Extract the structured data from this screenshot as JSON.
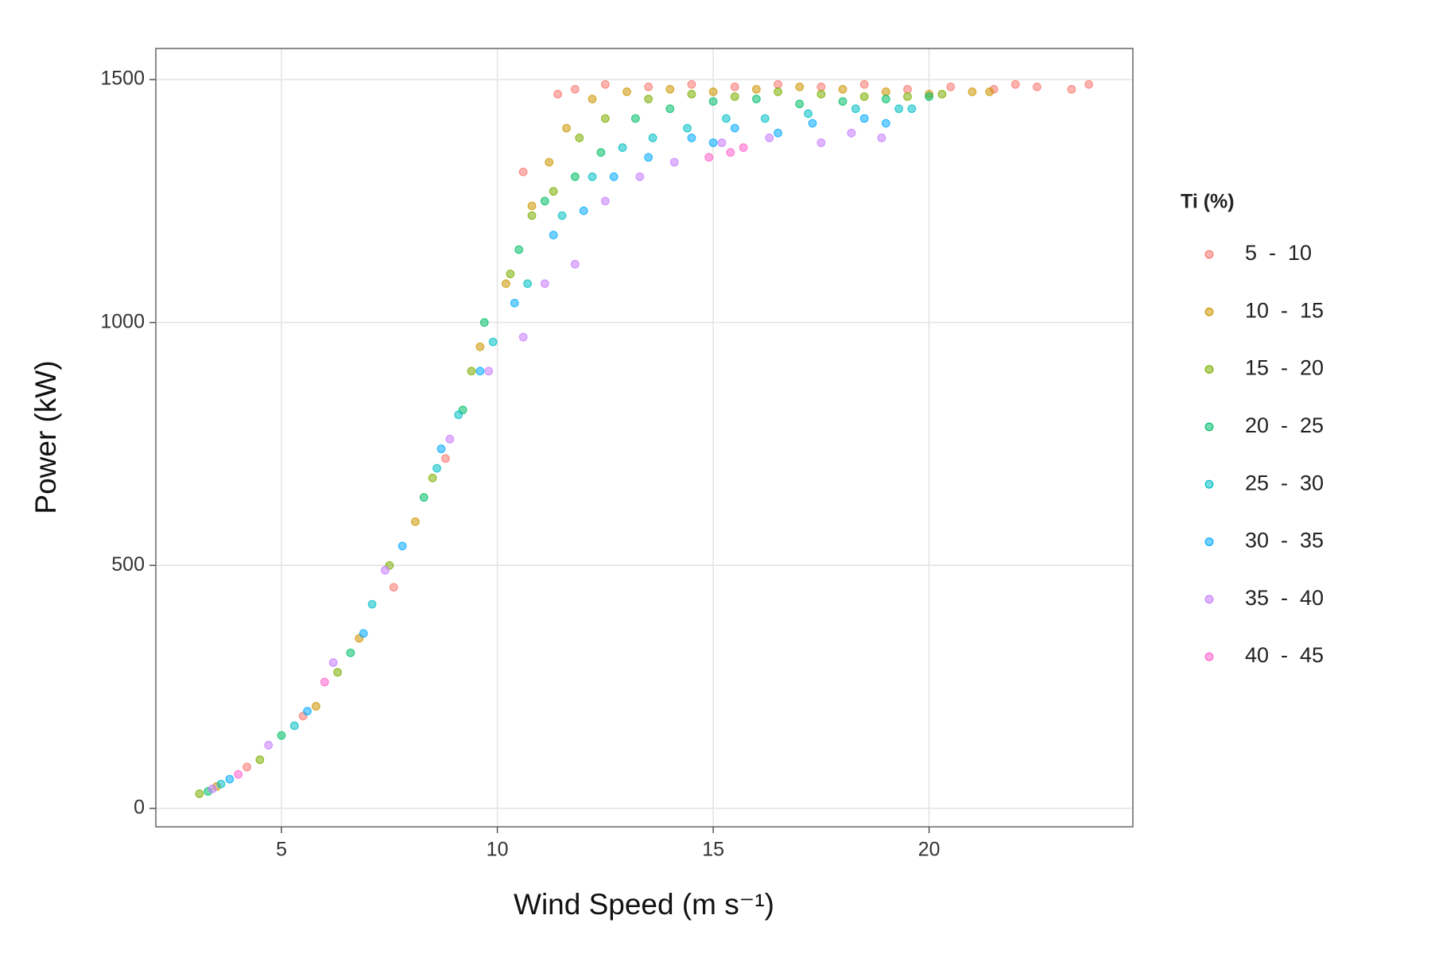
{
  "chart_data": {
    "type": "scatter",
    "x_label": "Wind Speed (m s⁻¹)",
    "y_label": "Power (kW)",
    "legend_title": "Ti (%)",
    "legend": "right",
    "grid": true,
    "xlim": [
      2.09,
      24.72
    ],
    "ylim": [
      -38,
      1564
    ],
    "xticks": [
      5,
      10,
      15,
      20
    ],
    "yticks": [
      0,
      500,
      1000,
      1500
    ],
    "series": [
      {
        "name": "5  -  10",
        "color": "#F8766D",
        "x": [
          4.2,
          5.5,
          7.6,
          8.8,
          10.6,
          11.4,
          11.8,
          12.5,
          13.5,
          14.5,
          15.5,
          16.5,
          17.5,
          18.5,
          19.5,
          20.5,
          21.5,
          22.0,
          22.5,
          23.3,
          23.7
        ],
        "values": [
          85,
          190,
          455,
          720,
          1310,
          1470,
          1480,
          1490,
          1485,
          1490,
          1485,
          1490,
          1485,
          1490,
          1480,
          1485,
          1480,
          1490,
          1485,
          1480,
          1490
        ]
      },
      {
        "name": "10  -  15",
        "color": "#CD9600",
        "x": [
          3.5,
          5.8,
          6.8,
          8.1,
          9.6,
          10.2,
          10.8,
          11.2,
          11.6,
          12.2,
          13.0,
          14.0,
          15.0,
          16.0,
          17.0,
          18.0,
          19.0,
          20.0,
          21.0,
          21.4
        ],
        "values": [
          45,
          210,
          350,
          590,
          950,
          1080,
          1240,
          1330,
          1400,
          1460,
          1475,
          1480,
          1475,
          1480,
          1485,
          1480,
          1475,
          1470,
          1475,
          1475
        ]
      },
      {
        "name": "15  -  20",
        "color": "#7CAE00",
        "x": [
          3.1,
          4.5,
          6.3,
          7.5,
          8.5,
          9.4,
          10.3,
          10.8,
          11.3,
          11.9,
          12.5,
          13.5,
          14.5,
          15.5,
          16.5,
          17.5,
          18.5,
          19.5,
          20.3
        ],
        "values": [
          30,
          100,
          280,
          500,
          680,
          900,
          1100,
          1220,
          1270,
          1380,
          1420,
          1460,
          1470,
          1465,
          1475,
          1470,
          1465,
          1465,
          1470
        ]
      },
      {
        "name": "20  -  25",
        "color": "#00BE67",
        "x": [
          3.3,
          5.0,
          6.6,
          8.3,
          9.2,
          9.7,
          10.5,
          11.1,
          11.8,
          12.4,
          13.2,
          14.0,
          15.0,
          16.0,
          17.0,
          18.0,
          19.0,
          20.0
        ],
        "values": [
          35,
          150,
          320,
          640,
          820,
          1000,
          1150,
          1250,
          1300,
          1350,
          1420,
          1440,
          1455,
          1460,
          1450,
          1455,
          1460,
          1465
        ]
      },
      {
        "name": "25  -  30",
        "color": "#00BFC4",
        "x": [
          3.6,
          5.3,
          7.1,
          8.6,
          9.1,
          9.9,
          10.7,
          11.5,
          12.2,
          12.9,
          13.6,
          14.4,
          15.3,
          16.2,
          17.2,
          18.3,
          19.3,
          19.6
        ],
        "values": [
          50,
          170,
          420,
          700,
          810,
          960,
          1080,
          1220,
          1300,
          1360,
          1380,
          1400,
          1420,
          1420,
          1430,
          1440,
          1440,
          1440
        ]
      },
      {
        "name": "30  -  35",
        "color": "#00A9FF",
        "x": [
          3.8,
          5.6,
          6.9,
          7.8,
          8.7,
          9.6,
          10.4,
          11.3,
          12.0,
          12.7,
          13.5,
          14.5,
          15.0,
          15.5,
          16.5,
          17.3,
          18.5,
          19.0
        ],
        "values": [
          60,
          200,
          360,
          540,
          740,
          900,
          1040,
          1180,
          1230,
          1300,
          1340,
          1380,
          1370,
          1400,
          1390,
          1410,
          1420,
          1410
        ]
      },
      {
        "name": "35  -  40",
        "color": "#C77CFF",
        "x": [
          3.4,
          4.7,
          6.2,
          7.4,
          8.9,
          9.8,
          10.6,
          11.1,
          11.8,
          12.5,
          13.3,
          14.1,
          15.2,
          16.3,
          17.5,
          18.2,
          18.9
        ],
        "values": [
          40,
          130,
          300,
          490,
          760,
          900,
          970,
          1080,
          1120,
          1250,
          1300,
          1330,
          1370,
          1380,
          1370,
          1390,
          1380
        ]
      },
      {
        "name": "40  -  45",
        "color": "#FF61CC",
        "x": [
          4.0,
          6.0,
          14.9,
          15.4,
          15.7
        ],
        "values": [
          70,
          260,
          1340,
          1350,
          1360
        ]
      }
    ]
  }
}
